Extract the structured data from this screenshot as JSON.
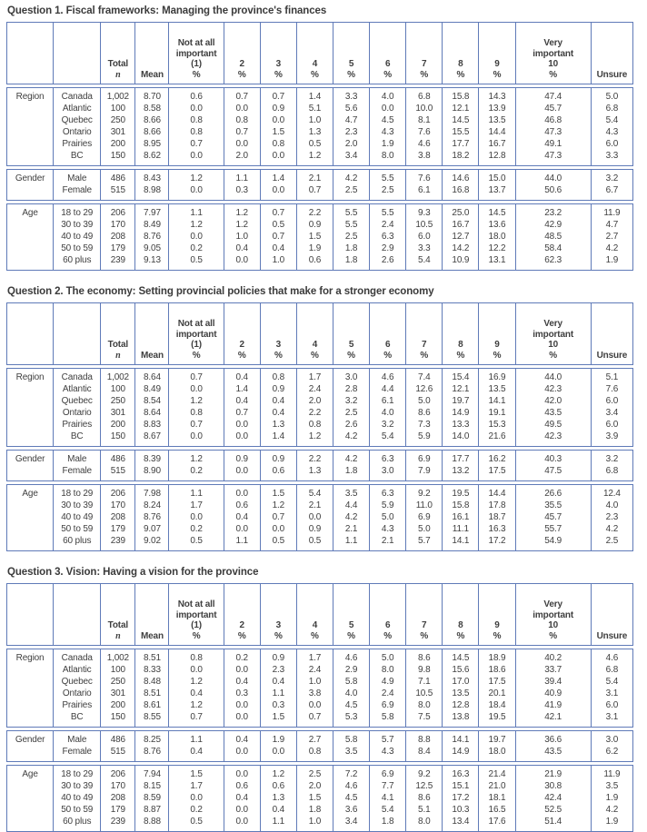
{
  "page": {
    "background": "#ffffff"
  },
  "colors": {
    "table_border": "#5f7ab8",
    "text": "#3f3f3f"
  },
  "columns": {
    "total_label": "Total",
    "total_sub": "n",
    "mean": "Mean",
    "not_at_all": [
      "Not at all",
      "important",
      "(1)",
      "%"
    ],
    "scale": [
      "2",
      "3",
      "4",
      "5",
      "6",
      "7",
      "8",
      "9"
    ],
    "scale_sub": "%",
    "very_important": [
      "Very",
      "important",
      "10",
      "%"
    ],
    "unsure": "Unsure"
  },
  "tables": [
    {
      "title": "Question 1. Fiscal frameworks: Managing the province's finances",
      "groups": [
        {
          "label": "Region",
          "rows": [
            {
              "name": "Canada",
              "n": "1,002",
              "mean": "8.70",
              "values": [
                "0.6",
                "0.7",
                "0.7",
                "1.4",
                "3.3",
                "4.0",
                "6.8",
                "15.8",
                "14.3",
                "47.4",
                "5.0"
              ]
            },
            {
              "name": "Atlantic",
              "n": "100",
              "mean": "8.58",
              "values": [
                "0.0",
                "0.0",
                "0.9",
                "5.1",
                "5.6",
                "0.0",
                "10.0",
                "12.1",
                "13.9",
                "45.7",
                "6.8"
              ]
            },
            {
              "name": "Quebec",
              "n": "250",
              "mean": "8.66",
              "values": [
                "0.8",
                "0.8",
                "0.0",
                "1.0",
                "4.7",
                "4.5",
                "8.1",
                "14.5",
                "13.5",
                "46.8",
                "5.4"
              ]
            },
            {
              "name": "Ontario",
              "n": "301",
              "mean": "8.66",
              "values": [
                "0.8",
                "0.7",
                "1.5",
                "1.3",
                "2.3",
                "4.3",
                "7.6",
                "15.5",
                "14.4",
                "47.3",
                "4.3"
              ]
            },
            {
              "name": "Prairies",
              "n": "200",
              "mean": "8.95",
              "values": [
                "0.7",
                "0.0",
                "0.8",
                "0.5",
                "2.0",
                "1.9",
                "4.6",
                "17.7",
                "16.7",
                "49.1",
                "6.0"
              ]
            },
            {
              "name": "BC",
              "n": "150",
              "mean": "8.62",
              "values": [
                "0.0",
                "2.0",
                "0.0",
                "1.2",
                "3.4",
                "8.0",
                "3.8",
                "18.2",
                "12.8",
                "47.3",
                "3.3"
              ]
            }
          ]
        },
        {
          "label": "Gender",
          "rows": [
            {
              "name": "Male",
              "n": "486",
              "mean": "8.43",
              "values": [
                "1.2",
                "1.1",
                "1.4",
                "2.1",
                "4.2",
                "5.5",
                "7.6",
                "14.6",
                "15.0",
                "44.0",
                "3.2"
              ]
            },
            {
              "name": "Female",
              "n": "515",
              "mean": "8.98",
              "values": [
                "0.0",
                "0.3",
                "0.0",
                "0.7",
                "2.5",
                "2.5",
                "6.1",
                "16.8",
                "13.7",
                "50.6",
                "6.7"
              ]
            }
          ]
        },
        {
          "label": "Age",
          "rows": [
            {
              "name": "18 to 29",
              "n": "206",
              "mean": "7.97",
              "values": [
                "1.1",
                "1.2",
                "0.7",
                "2.2",
                "5.5",
                "5.5",
                "9.3",
                "25.0",
                "14.5",
                "23.2",
                "11.9"
              ]
            },
            {
              "name": "30 to 39",
              "n": "170",
              "mean": "8.49",
              "values": [
                "1.2",
                "1.2",
                "0.5",
                "0.9",
                "5.5",
                "2.4",
                "10.5",
                "16.7",
                "13.6",
                "42.9",
                "4.7"
              ]
            },
            {
              "name": "40 to 49",
              "n": "208",
              "mean": "8.76",
              "values": [
                "0.0",
                "1.0",
                "0.7",
                "1.5",
                "2.5",
                "6.3",
                "6.0",
                "12.7",
                "18.0",
                "48.5",
                "2.7"
              ]
            },
            {
              "name": "50 to 59",
              "n": "179",
              "mean": "9.05",
              "values": [
                "0.2",
                "0.4",
                "0.4",
                "1.9",
                "1.8",
                "2.9",
                "3.3",
                "14.2",
                "12.2",
                "58.4",
                "4.2"
              ]
            },
            {
              "name": "60 plus",
              "n": "239",
              "mean": "9.13",
              "values": [
                "0.5",
                "0.0",
                "1.0",
                "0.6",
                "1.8",
                "2.6",
                "5.4",
                "10.9",
                "13.1",
                "62.3",
                "1.9"
              ]
            }
          ]
        }
      ]
    },
    {
      "title": "Question 2. The economy: Setting provincial policies that make for a stronger economy",
      "groups": [
        {
          "label": "Region",
          "rows": [
            {
              "name": "Canada",
              "n": "1,002",
              "mean": "8.64",
              "values": [
                "0.7",
                "0.4",
                "0.8",
                "1.7",
                "3.0",
                "4.6",
                "7.4",
                "15.4",
                "16.9",
                "44.0",
                "5.1"
              ]
            },
            {
              "name": "Atlantic",
              "n": "100",
              "mean": "8.49",
              "values": [
                "0.0",
                "1.4",
                "0.9",
                "2.4",
                "2.8",
                "4.4",
                "12.6",
                "12.1",
                "13.5",
                "42.3",
                "7.6"
              ]
            },
            {
              "name": "Quebec",
              "n": "250",
              "mean": "8.54",
              "values": [
                "1.2",
                "0.4",
                "0.4",
                "2.0",
                "3.2",
                "6.1",
                "5.0",
                "19.7",
                "14.1",
                "42.0",
                "6.0"
              ]
            },
            {
              "name": "Ontario",
              "n": "301",
              "mean": "8.64",
              "values": [
                "0.8",
                "0.7",
                "0.4",
                "2.2",
                "2.5",
                "4.0",
                "8.6",
                "14.9",
                "19.1",
                "43.5",
                "3.4"
              ]
            },
            {
              "name": "Prairies",
              "n": "200",
              "mean": "8.83",
              "values": [
                "0.7",
                "0.0",
                "1.3",
                "0.8",
                "2.6",
                "3.2",
                "7.3",
                "13.3",
                "15.3",
                "49.5",
                "6.0"
              ]
            },
            {
              "name": "BC",
              "n": "150",
              "mean": "8.67",
              "values": [
                "0.0",
                "0.0",
                "1.4",
                "1.2",
                "4.2",
                "5.4",
                "5.9",
                "14.0",
                "21.6",
                "42.3",
                "3.9"
              ]
            }
          ]
        },
        {
          "label": "Gender",
          "rows": [
            {
              "name": "Male",
              "n": "486",
              "mean": "8.39",
              "values": [
                "1.2",
                "0.9",
                "0.9",
                "2.2",
                "4.2",
                "6.3",
                "6.9",
                "17.7",
                "16.2",
                "40.3",
                "3.2"
              ]
            },
            {
              "name": "Female",
              "n": "515",
              "mean": "8.90",
              "values": [
                "0.2",
                "0.0",
                "0.6",
                "1.3",
                "1.8",
                "3.0",
                "7.9",
                "13.2",
                "17.5",
                "47.5",
                "6.8"
              ]
            }
          ]
        },
        {
          "label": "Age",
          "rows": [
            {
              "name": "18 to 29",
              "n": "206",
              "mean": "7.98",
              "values": [
                "1.1",
                "0.0",
                "1.5",
                "5.4",
                "3.5",
                "6.3",
                "9.2",
                "19.5",
                "14.4",
                "26.6",
                "12.4"
              ]
            },
            {
              "name": "30 to 39",
              "n": "170",
              "mean": "8.24",
              "values": [
                "1.7",
                "0.6",
                "1.2",
                "2.1",
                "4.4",
                "5.9",
                "11.0",
                "15.8",
                "17.8",
                "35.5",
                "4.0"
              ]
            },
            {
              "name": "40 to 49",
              "n": "208",
              "mean": "8.76",
              "values": [
                "0.0",
                "0.4",
                "0.7",
                "0.0",
                "4.2",
                "5.0",
                "6.9",
                "16.1",
                "18.7",
                "45.7",
                "2.3"
              ]
            },
            {
              "name": "50 to 59",
              "n": "179",
              "mean": "9.07",
              "values": [
                "0.2",
                "0.0",
                "0.0",
                "0.9",
                "2.1",
                "4.3",
                "5.0",
                "11.1",
                "16.3",
                "55.7",
                "4.2"
              ]
            },
            {
              "name": "60 plus",
              "n": "239",
              "mean": "9.02",
              "values": [
                "0.5",
                "1.1",
                "0.5",
                "0.5",
                "1.1",
                "2.1",
                "5.7",
                "14.1",
                "17.2",
                "54.9",
                "2.5"
              ]
            }
          ]
        }
      ]
    },
    {
      "title": "Question 3. Vision: Having a vision for the province",
      "groups": [
        {
          "label": "Region",
          "rows": [
            {
              "name": "Canada",
              "n": "1,002",
              "mean": "8.51",
              "values": [
                "0.8",
                "0.2",
                "0.9",
                "1.7",
                "4.6",
                "5.0",
                "8.6",
                "14.5",
                "18.9",
                "40.2",
                "4.6"
              ]
            },
            {
              "name": "Atlantic",
              "n": "100",
              "mean": "8.33",
              "values": [
                "0.0",
                "0.0",
                "2.3",
                "2.4",
                "2.9",
                "8.0",
                "9.8",
                "15.6",
                "18.6",
                "33.7",
                "6.8"
              ]
            },
            {
              "name": "Quebec",
              "n": "250",
              "mean": "8.48",
              "values": [
                "1.2",
                "0.4",
                "0.4",
                "1.0",
                "5.8",
                "4.9",
                "7.1",
                "17.0",
                "17.5",
                "39.4",
                "5.4"
              ]
            },
            {
              "name": "Ontario",
              "n": "301",
              "mean": "8.51",
              "values": [
                "0.4",
                "0.3",
                "1.1",
                "3.8",
                "4.0",
                "2.4",
                "10.5",
                "13.5",
                "20.1",
                "40.9",
                "3.1"
              ]
            },
            {
              "name": "Prairies",
              "n": "200",
              "mean": "8.61",
              "values": [
                "1.2",
                "0.0",
                "0.3",
                "0.0",
                "4.5",
                "6.9",
                "8.0",
                "12.8",
                "18.4",
                "41.9",
                "6.0"
              ]
            },
            {
              "name": "BC",
              "n": "150",
              "mean": "8.55",
              "values": [
                "0.7",
                "0.0",
                "1.5",
                "0.7",
                "5.3",
                "5.8",
                "7.5",
                "13.8",
                "19.5",
                "42.1",
                "3.1"
              ]
            }
          ]
        },
        {
          "label": "Gender",
          "rows": [
            {
              "name": "Male",
              "n": "486",
              "mean": "8.25",
              "values": [
                "1.1",
                "0.4",
                "1.9",
                "2.7",
                "5.8",
                "5.7",
                "8.8",
                "14.1",
                "19.7",
                "36.6",
                "3.0"
              ]
            },
            {
              "name": "Female",
              "n": "515",
              "mean": "8.76",
              "values": [
                "0.4",
                "0.0",
                "0.0",
                "0.8",
                "3.5",
                "4.3",
                "8.4",
                "14.9",
                "18.0",
                "43.5",
                "6.2"
              ]
            }
          ]
        },
        {
          "label": "Age",
          "rows": [
            {
              "name": "18 to 29",
              "n": "206",
              "mean": "7.94",
              "values": [
                "1.5",
                "0.0",
                "1.2",
                "2.5",
                "7.2",
                "6.9",
                "9.2",
                "16.3",
                "21.4",
                "21.9",
                "11.9"
              ]
            },
            {
              "name": "30 to 39",
              "n": "170",
              "mean": "8.15",
              "values": [
                "1.7",
                "0.6",
                "0.6",
                "2.0",
                "4.6",
                "7.7",
                "12.5",
                "15.1",
                "21.0",
                "30.8",
                "3.5"
              ]
            },
            {
              "name": "40 to 49",
              "n": "208",
              "mean": "8.59",
              "values": [
                "0.0",
                "0.4",
                "1.3",
                "1.5",
                "4.5",
                "4.1",
                "8.6",
                "17.2",
                "18.1",
                "42.4",
                "1.9"
              ]
            },
            {
              "name": "50 to 59",
              "n": "179",
              "mean": "8.87",
              "values": [
                "0.2",
                "0.0",
                "0.4",
                "1.8",
                "3.6",
                "5.4",
                "5.1",
                "10.3",
                "16.5",
                "52.5",
                "4.2"
              ]
            },
            {
              "name": "60 plus",
              "n": "239",
              "mean": "8.88",
              "values": [
                "0.5",
                "0.0",
                "1.1",
                "1.0",
                "3.4",
                "1.8",
                "8.0",
                "13.4",
                "17.6",
                "51.4",
                "1.9"
              ]
            }
          ]
        }
      ]
    }
  ]
}
